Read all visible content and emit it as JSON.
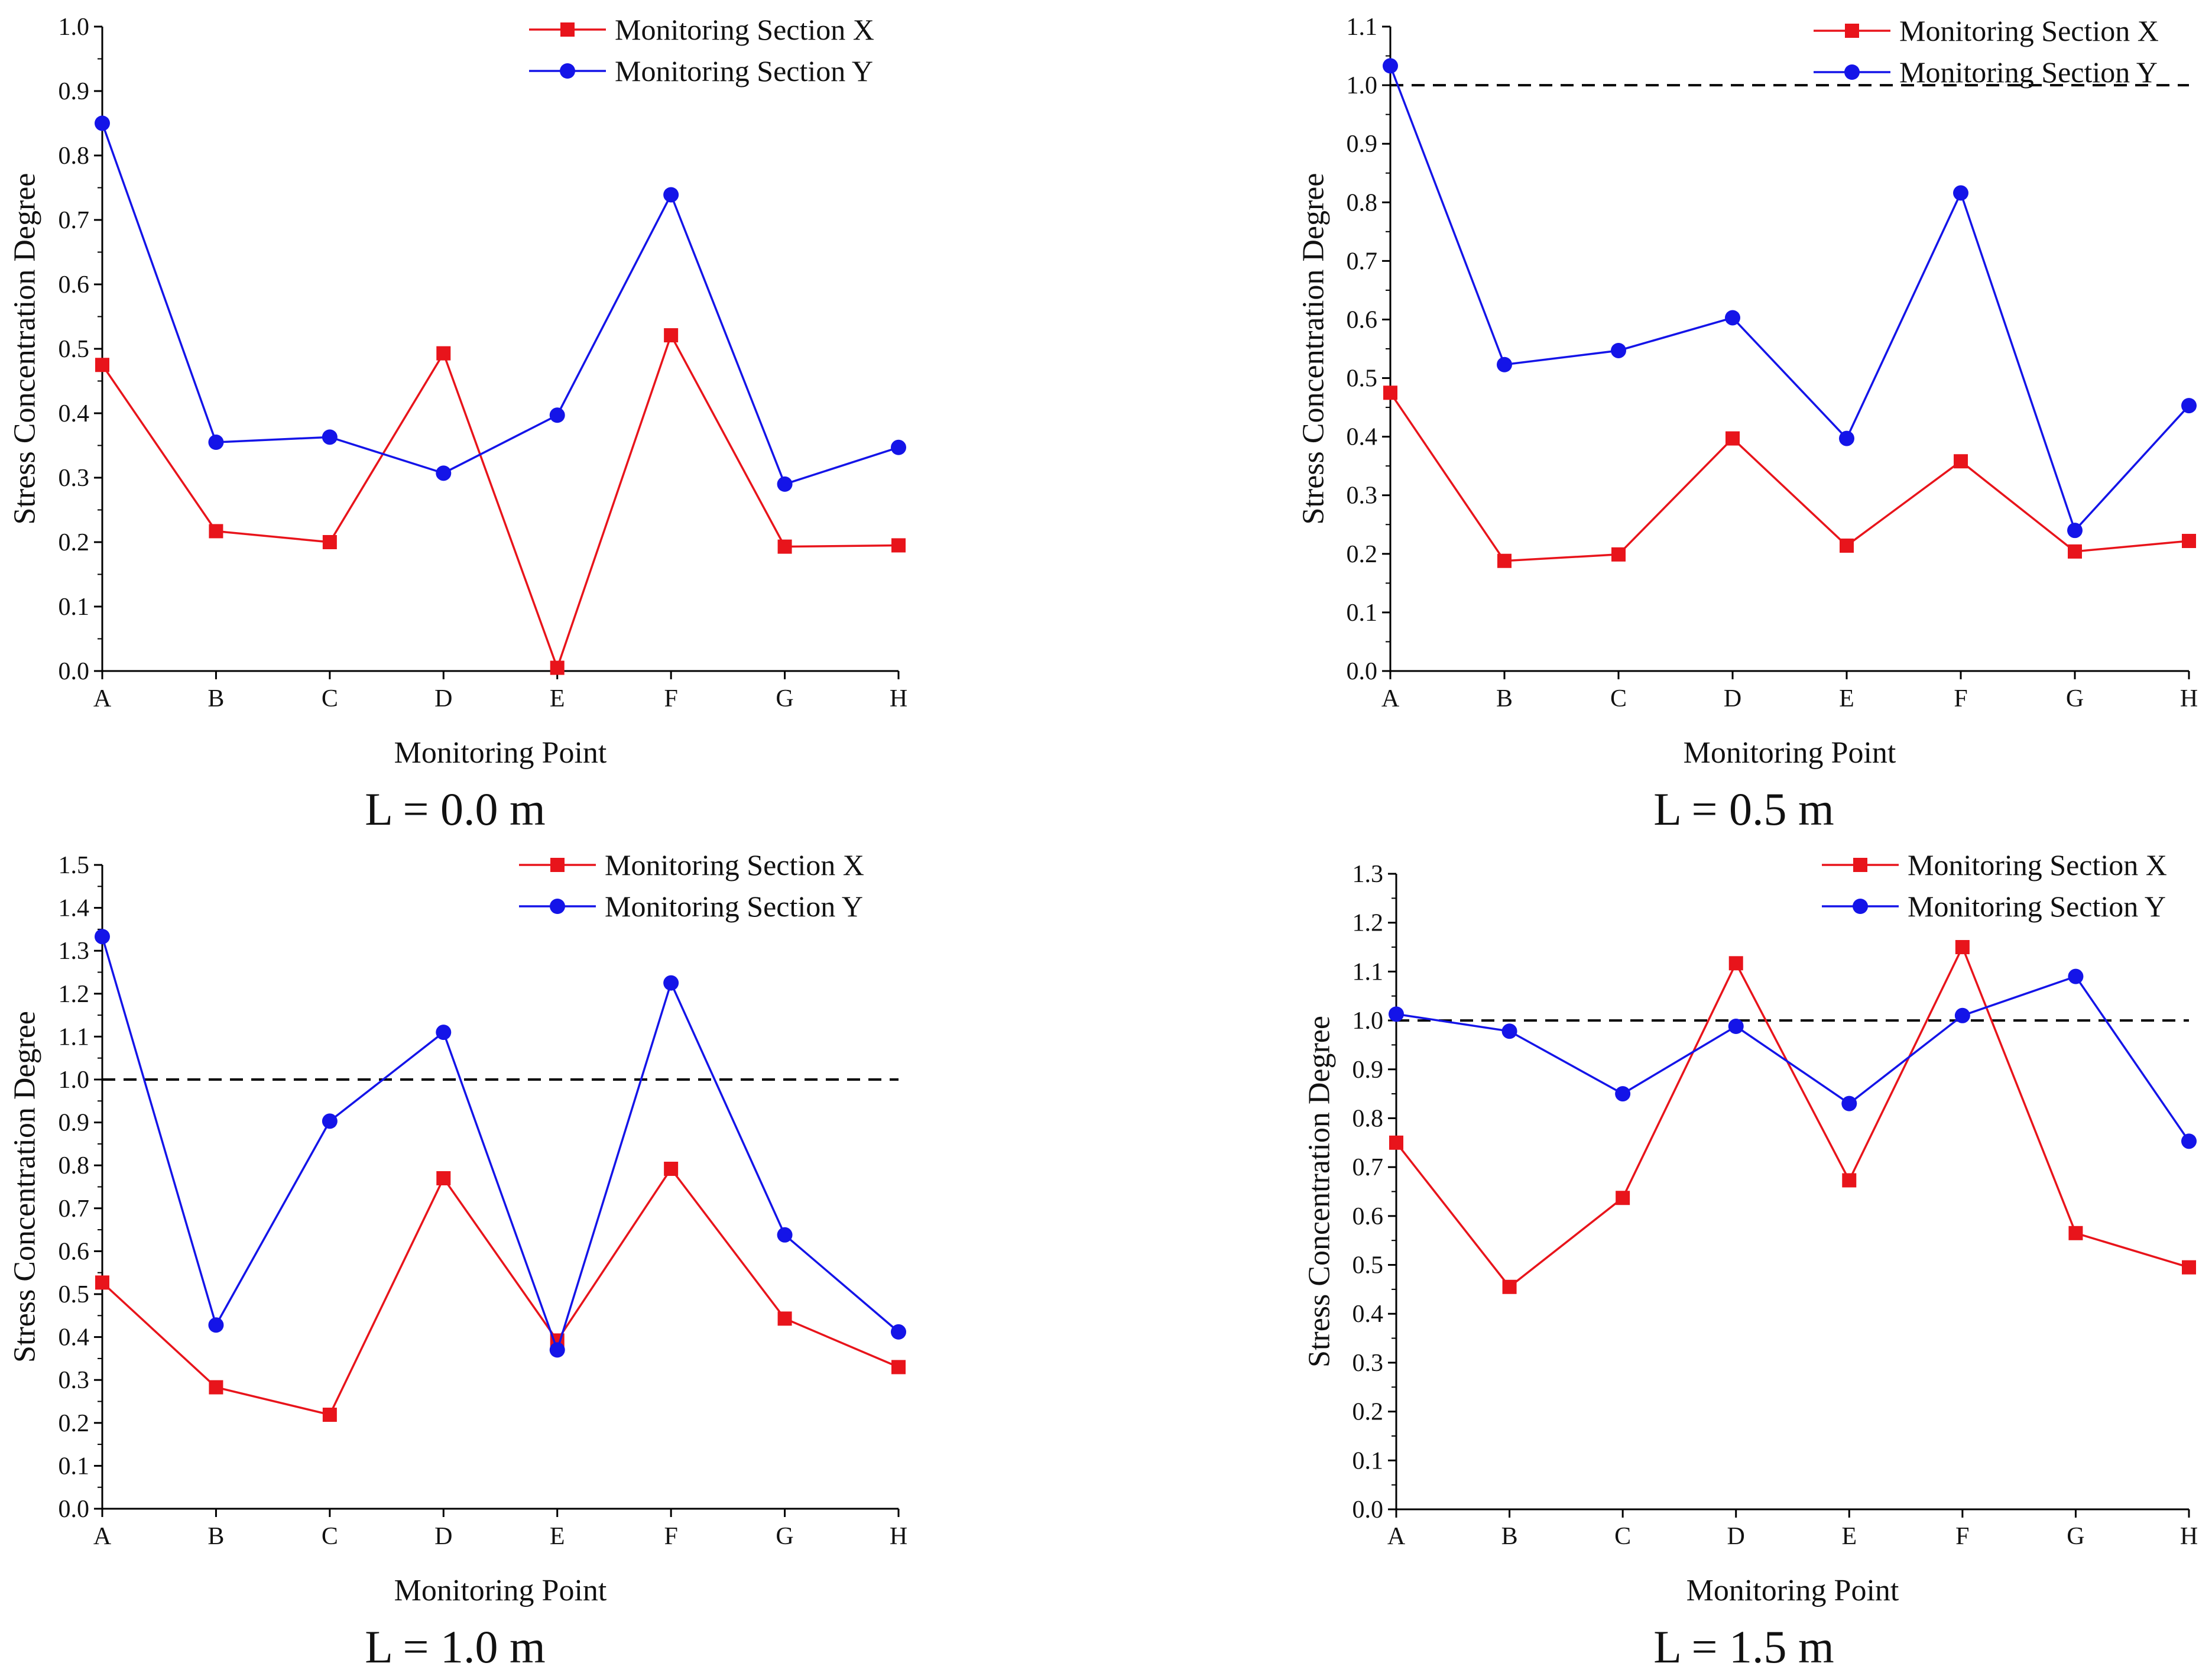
{
  "colors": {
    "series_x": "#e8141b",
    "series_y": "#1414e8",
    "axis": "#000000",
    "reference": "#000000"
  },
  "chart_data": [
    {
      "type": "line",
      "caption": "L = 0.0 m",
      "xlabel": "Monitoring Point",
      "ylabel": "Stress Concentration Degree",
      "categories": [
        "A",
        "B",
        "C",
        "D",
        "E",
        "F",
        "G",
        "H"
      ],
      "ylim": [
        0,
        1.0
      ],
      "yticks": [
        "0.0",
        "0.1",
        "0.2",
        "0.3",
        "0.4",
        "0.5",
        "0.6",
        "0.7",
        "0.8",
        "0.9",
        "1.0"
      ],
      "reference_line": null,
      "legend_position": "top-right",
      "series": [
        {
          "name": "Monitoring Section X",
          "marker": "square",
          "values": [
            0.475,
            0.217,
            0.2,
            0.493,
            0.005,
            0.521,
            0.193,
            0.195
          ]
        },
        {
          "name": "Monitoring Section Y",
          "marker": "circle",
          "values": [
            0.85,
            0.355,
            0.363,
            0.307,
            0.397,
            0.739,
            0.29,
            0.347
          ]
        }
      ]
    },
    {
      "type": "line",
      "caption": "L = 0.5 m",
      "xlabel": "Monitoring Point",
      "ylabel": "Stress Concentration Degree",
      "categories": [
        "A",
        "B",
        "C",
        "D",
        "E",
        "F",
        "G",
        "H"
      ],
      "ylim": [
        0,
        1.1
      ],
      "yticks": [
        "0.0",
        "0.1",
        "0.2",
        "0.3",
        "0.4",
        "0.5",
        "0.6",
        "0.7",
        "0.8",
        "0.9",
        "1.0",
        "1.1"
      ],
      "reference_line": 1.0,
      "legend_position": "top-right",
      "series": [
        {
          "name": "Monitoring Section X",
          "marker": "square",
          "values": [
            0.475,
            0.188,
            0.199,
            0.397,
            0.214,
            0.358,
            0.204,
            0.222
          ]
        },
        {
          "name": "Monitoring Section Y",
          "marker": "circle",
          "values": [
            1.033,
            0.523,
            0.547,
            0.603,
            0.397,
            0.816,
            0.24,
            0.453
          ]
        }
      ]
    },
    {
      "type": "line",
      "caption": "L = 1.0 m",
      "xlabel": "Monitoring Point",
      "ylabel": "Stress Concentration Degree",
      "categories": [
        "A",
        "B",
        "C",
        "D",
        "E",
        "F",
        "G",
        "H"
      ],
      "ylim": [
        0,
        1.5
      ],
      "yticks": [
        "0.0",
        "0.1",
        "0.2",
        "0.3",
        "0.4",
        "0.5",
        "0.6",
        "0.7",
        "0.8",
        "0.9",
        "1.0",
        "1.1",
        "1.2",
        "1.3",
        "1.4",
        "1.5"
      ],
      "reference_line": 1.0,
      "legend_position": "top-right",
      "series": [
        {
          "name": "Monitoring Section X",
          "marker": "square",
          "values": [
            0.527,
            0.283,
            0.219,
            0.77,
            0.392,
            0.792,
            0.443,
            0.33
          ]
        },
        {
          "name": "Monitoring Section Y",
          "marker": "circle",
          "values": [
            1.333,
            0.428,
            0.903,
            1.11,
            0.37,
            1.225,
            0.638,
            0.412
          ]
        }
      ]
    },
    {
      "type": "line",
      "caption": "L = 1.5 m",
      "xlabel": "Monitoring Point",
      "ylabel": "Stress Concentration Degree",
      "categories": [
        "A",
        "B",
        "C",
        "D",
        "E",
        "F",
        "G",
        "H"
      ],
      "ylim": [
        0,
        1.3
      ],
      "yticks": [
        "0.0",
        "0.1",
        "0.2",
        "0.3",
        "0.4",
        "0.5",
        "0.6",
        "0.7",
        "0.8",
        "0.9",
        "1.0",
        "1.1",
        "1.2",
        "1.3"
      ],
      "reference_line": 1.0,
      "legend_position": "top-right",
      "series": [
        {
          "name": "Monitoring Section X",
          "marker": "square",
          "values": [
            0.75,
            0.455,
            0.637,
            1.117,
            0.673,
            1.15,
            0.565,
            0.495
          ]
        },
        {
          "name": "Monitoring Section Y",
          "marker": "circle",
          "values": [
            1.013,
            0.978,
            0.85,
            0.988,
            0.83,
            1.01,
            1.09,
            0.753
          ]
        }
      ]
    }
  ]
}
